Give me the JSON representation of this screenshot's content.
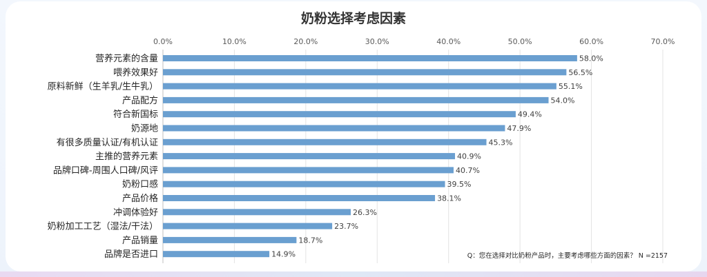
{
  "chart_data": {
    "type": "bar",
    "orientation": "horizontal",
    "title": "奶粉选择考虑因素",
    "xlim": [
      0,
      70
    ],
    "ticks": [
      0,
      10,
      20,
      30,
      40,
      50,
      60,
      70
    ],
    "tick_labels": [
      "0.0%",
      "10.0%",
      "20.0%",
      "30.0%",
      "40.0%",
      "50.0%",
      "60.0%",
      "70.0%"
    ],
    "gridlines": true,
    "categories": [
      "营养元素的含量",
      "喂养效果好",
      "原料新鲜（生羊乳/生牛乳）",
      "产品配方",
      "符合新国标",
      "奶源地",
      "有很多质量认证/有机认证",
      "主推的营养元素",
      "品牌口碑-周围人口碑/风评",
      "奶粉口感",
      "产品价格",
      "冲调体验好",
      "奶粉加工工艺（湿法/干法）",
      "产品销量",
      "品牌是否进口"
    ],
    "values": [
      58.0,
      56.5,
      55.1,
      54.0,
      49.4,
      47.9,
      45.3,
      40.9,
      40.7,
      39.5,
      38.1,
      26.3,
      23.7,
      18.7,
      14.9
    ],
    "value_labels": [
      "58.0%",
      "56.5%",
      "55.1%",
      "54.0%",
      "49.4%",
      "47.9%",
      "45.3%",
      "40.9%",
      "40.7%",
      "39.5%",
      "38.1%",
      "26.3%",
      "23.7%",
      "18.7%",
      "14.9%"
    ],
    "bar_color": "#6a9fd0",
    "note": "Q：您在选择对比奶粉产品时，主要考虑哪些方面的因素？ N =2157"
  }
}
